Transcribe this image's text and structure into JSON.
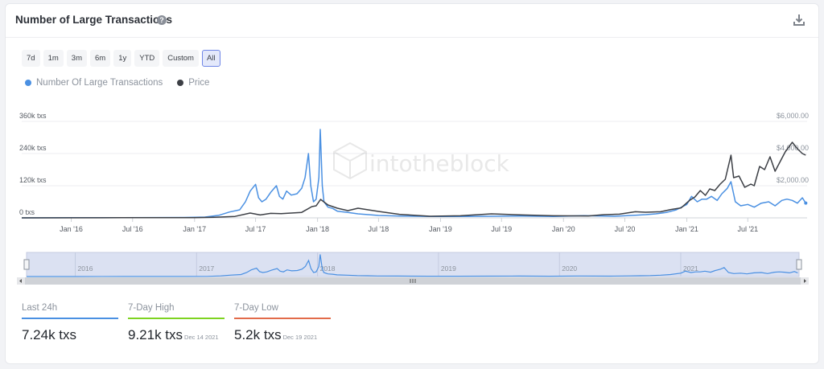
{
  "header": {
    "title": "Number of Large Transactions",
    "help_icon": "question-mark-icon",
    "download_icon": "download-icon"
  },
  "ranges": [
    "7d",
    "1m",
    "3m",
    "6m",
    "1y",
    "YTD",
    "Custom",
    "All"
  ],
  "active_range": "All",
  "watermark": "intotheblock",
  "navigator": {
    "year_labels": [
      "2016",
      "2017",
      "2018",
      "2019",
      "2020",
      "2021"
    ]
  },
  "stats": [
    {
      "label": "Last 24h",
      "value": "7.24k txs",
      "date": "",
      "color": "#4a90e2"
    },
    {
      "label": "7-Day High",
      "value": "9.21k txs",
      "date": "Dec 14 2021",
      "color": "#7ed321"
    },
    {
      "label": "7-Day Low",
      "value": "5.2k txs",
      "date": "Dec 19 2021",
      "color": "#e26b4a"
    }
  ],
  "chart_data": {
    "type": "line",
    "x_tick_labels": [
      "Jan '16",
      "Jul '16",
      "Jan '17",
      "Jul '17",
      "Jan '18",
      "Jul '18",
      "Jan '19",
      "Jul '19",
      "Jan '20",
      "Jul '20",
      "Jan '21",
      "Jul '21"
    ],
    "y_left": {
      "ticks": [
        "0 txs",
        "120k txs",
        "240k txs",
        "360k txs"
      ],
      "range": [
        0,
        360000
      ]
    },
    "y_right": {
      "ticks": [
        "$2,000.00",
        "$4,000.00",
        "$6,000.00"
      ],
      "range": [
        0,
        6000
      ]
    },
    "grid": true,
    "legend_position": "top-left",
    "series": [
      {
        "name": "Number Of Large Transactions",
        "color": "#4a90e2",
        "axis": "left",
        "x": [
          "2015-08-07",
          "2016-01-01",
          "2016-06-01",
          "2016-12-01",
          "2017-02-01",
          "2017-03-15",
          "2017-04-15",
          "2017-05-15",
          "2017-06-01",
          "2017-06-15",
          "2017-07-01",
          "2017-07-10",
          "2017-07-20",
          "2017-08-01",
          "2017-08-15",
          "2017-09-01",
          "2017-09-10",
          "2017-09-20",
          "2017-10-01",
          "2017-10-15",
          "2017-11-01",
          "2017-11-15",
          "2017-11-25",
          "2017-12-05",
          "2017-12-12",
          "2017-12-20",
          "2017-12-28",
          "2018-01-05",
          "2018-01-09",
          "2018-01-15",
          "2018-01-20",
          "2018-02-01",
          "2018-02-15",
          "2018-03-01",
          "2018-04-01",
          "2018-05-01",
          "2018-06-01",
          "2018-07-01",
          "2018-09-01",
          "2018-12-01",
          "2019-03-01",
          "2019-06-01",
          "2019-09-01",
          "2019-12-01",
          "2020-03-01",
          "2020-06-01",
          "2020-08-01",
          "2020-09-01",
          "2020-10-01",
          "2020-11-01",
          "2020-12-01",
          "2021-01-01",
          "2021-01-15",
          "2021-02-01",
          "2021-02-15",
          "2021-03-01",
          "2021-03-15",
          "2021-04-01",
          "2021-04-15",
          "2021-05-01",
          "2021-05-12",
          "2021-05-25",
          "2021-06-10",
          "2021-07-01",
          "2021-07-20",
          "2021-08-10",
          "2021-09-01",
          "2021-09-20",
          "2021-10-10",
          "2021-10-25",
          "2021-11-10",
          "2021-11-25",
          "2021-12-10",
          "2021-12-20"
        ],
        "values": [
          0,
          500,
          1000,
          1500,
          3000,
          10000,
          22000,
          30000,
          60000,
          100000,
          125000,
          75000,
          60000,
          70000,
          95000,
          120000,
          80000,
          70000,
          100000,
          85000,
          90000,
          110000,
          150000,
          240000,
          120000,
          60000,
          70000,
          150000,
          330000,
          120000,
          60000,
          40000,
          35000,
          25000,
          20000,
          15000,
          12000,
          9000,
          7000,
          5000,
          5000,
          6000,
          7000,
          5000,
          8000,
          6000,
          10000,
          12000,
          15000,
          20000,
          30000,
          50000,
          80000,
          60000,
          70000,
          70000,
          80000,
          65000,
          90000,
          110000,
          135000,
          60000,
          45000,
          50000,
          40000,
          55000,
          60000,
          45000,
          65000,
          70000,
          65000,
          55000,
          75000,
          55000
        ]
      },
      {
        "name": "Price",
        "color": "#3c3f45",
        "axis": "right",
        "x": [
          "2015-08-07",
          "2016-06-01",
          "2017-01-01",
          "2017-03-01",
          "2017-05-01",
          "2017-06-15",
          "2017-07-15",
          "2017-08-15",
          "2017-09-15",
          "2017-10-15",
          "2017-11-15",
          "2017-12-15",
          "2017-12-28",
          "2018-01-10",
          "2018-02-01",
          "2018-03-01",
          "2018-04-01",
          "2018-05-01",
          "2018-07-01",
          "2018-09-01",
          "2018-12-01",
          "2019-03-01",
          "2019-06-01",
          "2019-09-01",
          "2019-12-01",
          "2020-03-15",
          "2020-05-01",
          "2020-06-15",
          "2020-08-01",
          "2020-09-01",
          "2020-10-15",
          "2020-11-15",
          "2020-12-15",
          "2021-01-10",
          "2021-01-25",
          "2021-02-10",
          "2021-02-25",
          "2021-03-10",
          "2021-03-25",
          "2021-04-10",
          "2021-04-25",
          "2021-05-12",
          "2021-05-20",
          "2021-06-05",
          "2021-06-22",
          "2021-07-10",
          "2021-07-20",
          "2021-08-05",
          "2021-08-20",
          "2021-09-05",
          "2021-09-20",
          "2021-10-05",
          "2021-10-20",
          "2021-11-10",
          "2021-11-25",
          "2021-12-10",
          "2021-12-20"
        ],
        "values": [
          2,
          10,
          10,
          40,
          90,
          300,
          180,
          280,
          260,
          300,
          340,
          700,
          750,
          1150,
          800,
          600,
          450,
          600,
          400,
          220,
          100,
          130,
          250,
          180,
          130,
          120,
          200,
          230,
          380,
          350,
          380,
          520,
          620,
          1100,
          1300,
          1700,
          1400,
          1800,
          1700,
          2100,
          2400,
          3900,
          2500,
          2600,
          1900,
          2100,
          2000,
          3200,
          3000,
          3800,
          2900,
          3500,
          4100,
          4700,
          4300,
          4000,
          3900
        ]
      }
    ]
  }
}
